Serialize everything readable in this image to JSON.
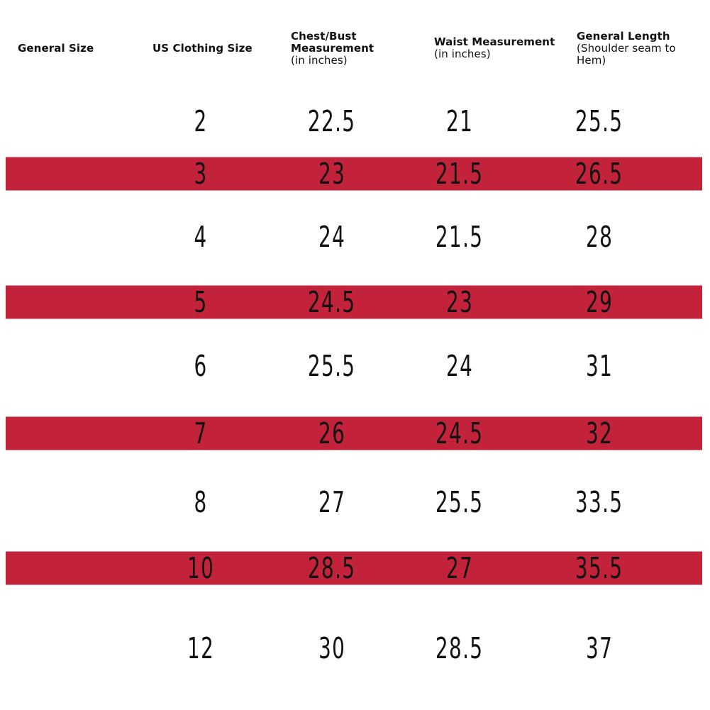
{
  "chart_data": {
    "type": "table",
    "title": "",
    "columns": [
      {
        "title": "General Size",
        "subtitle": ""
      },
      {
        "title": "US Clothing Size",
        "subtitle": ""
      },
      {
        "title": "Chest/Bust Measurement",
        "subtitle": "(in inches)"
      },
      {
        "title": "Waist Measurement",
        "subtitle": "(in inches)"
      },
      {
        "title": "General Length",
        "subtitle": "(Shoulder seam to Hem)"
      }
    ],
    "rows": [
      {
        "general_size": "",
        "us_clothing_size": "2",
        "chest_bust": "22.5",
        "waist": "21",
        "general_length": "25.5",
        "highlighted": false
      },
      {
        "general_size": "",
        "us_clothing_size": "3",
        "chest_bust": "23",
        "waist": "21.5",
        "general_length": "26.5",
        "highlighted": true
      },
      {
        "general_size": "",
        "us_clothing_size": "4",
        "chest_bust": "24",
        "waist": "21.5",
        "general_length": "28",
        "highlighted": false
      },
      {
        "general_size": "",
        "us_clothing_size": "5",
        "chest_bust": "24.5",
        "waist": "23",
        "general_length": "29",
        "highlighted": true
      },
      {
        "general_size": "",
        "us_clothing_size": "6",
        "chest_bust": "25.5",
        "waist": "24",
        "general_length": "31",
        "highlighted": false
      },
      {
        "general_size": "",
        "us_clothing_size": "7",
        "chest_bust": "26",
        "waist": "24.5",
        "general_length": "32",
        "highlighted": true
      },
      {
        "general_size": "",
        "us_clothing_size": "8",
        "chest_bust": "27",
        "waist": "25.5",
        "general_length": "33.5",
        "highlighted": false
      },
      {
        "general_size": "",
        "us_clothing_size": "10",
        "chest_bust": "28.5",
        "waist": "27",
        "general_length": "35.5",
        "highlighted": true
      },
      {
        "general_size": "",
        "us_clothing_size": "12",
        "chest_bust": "30",
        "waist": "28.5",
        "general_length": "37",
        "highlighted": false
      }
    ],
    "layout": {
      "legend": false,
      "grid_lines": false,
      "stripe_pattern": "alternate-rows"
    }
  },
  "colors": {
    "stripe": "#C2233B",
    "text": "#121212",
    "background": "#FFFFFF"
  }
}
